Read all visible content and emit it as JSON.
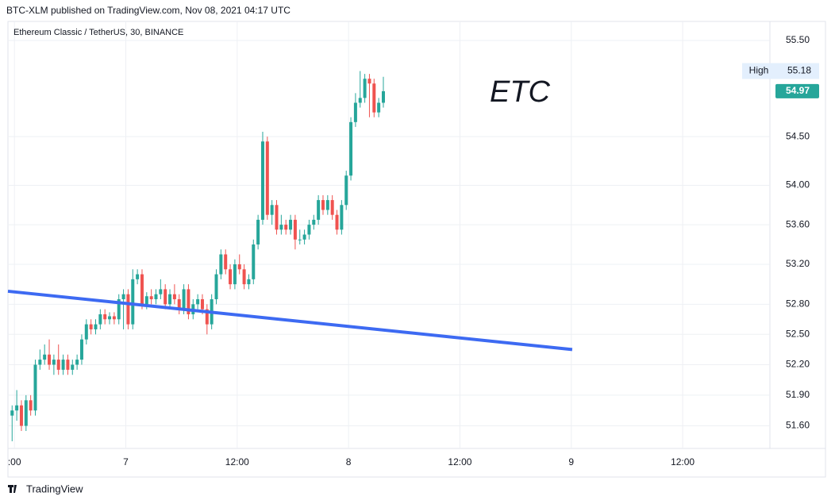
{
  "header": "BTC-XLM published on TradingView.com, Nov 08, 2021 04:17 UTC",
  "footer": "TradingView",
  "chart_data": {
    "type": "candlestick",
    "title": "Ethereum Classic / TetherUS, 30, BINANCE",
    "annotation": "ETC",
    "up_color": "#26a69a",
    "down_color": "#ef5350",
    "x": [
      11.75,
      12.25,
      12.75,
      13.25,
      13.75,
      14.25,
      14.75,
      15.25,
      15.75,
      16.25,
      16.75,
      17.25,
      17.75,
      18.25,
      18.75,
      19.25,
      19.75,
      20.25,
      20.75,
      21.25,
      21.75,
      22.25,
      22.75,
      23.25,
      23.75,
      24.25,
      24.75,
      25.25,
      25.75,
      26.25,
      26.75,
      27.25,
      27.75,
      28.25,
      28.75,
      29.25,
      29.75,
      30.25,
      30.75,
      31.25,
      31.75,
      32.25,
      32.75,
      33.25,
      33.75,
      34.25,
      34.75,
      35.25,
      35.75,
      36.25,
      36.75,
      37.25,
      37.75,
      38.25,
      38.75,
      39.25,
      39.75,
      40.25,
      40.75,
      41.25,
      41.75,
      42.25,
      42.75,
      43.25,
      43.75,
      44.25,
      44.75,
      45.25,
      45.75,
      46.25,
      46.75,
      47.25,
      47.75,
      48.25,
      48.75,
      49.25,
      49.75,
      50.25,
      50.75,
      51.25,
      51.75
    ],
    "open": [
      51.7,
      51.75,
      51.8,
      51.6,
      51.85,
      51.75,
      52.2,
      52.25,
      52.3,
      52.2,
      52.25,
      52.15,
      52.25,
      52.15,
      52.2,
      52.25,
      52.45,
      52.6,
      52.55,
      52.6,
      52.7,
      52.65,
      52.68,
      52.65,
      52.85,
      52.9,
      52.6,
      53.05,
      53.1,
      52.8,
      52.88,
      52.85,
      52.9,
      52.95,
      52.8,
      52.9,
      52.85,
      52.75,
      52.95,
      52.7,
      52.8,
      52.85,
      52.75,
      52.6,
      52.85,
      53.1,
      53.3,
      53.15,
      53.0,
      53.2,
      53.15,
      53.0,
      53.05,
      53.4,
      53.65,
      54.45,
      53.7,
      53.8,
      53.55,
      53.6,
      53.55,
      53.65,
      53.45,
      53.45,
      53.5,
      53.6,
      53.65,
      53.85,
      53.75,
      53.85,
      53.7,
      53.55,
      53.8,
      54.1,
      54.65,
      54.85,
      54.9,
      55.1,
      55.05,
      54.75,
      54.85
    ],
    "high": [
      51.8,
      51.95,
      51.85,
      51.9,
      51.9,
      52.25,
      52.35,
      52.4,
      52.45,
      52.3,
      52.4,
      52.3,
      52.3,
      52.25,
      52.3,
      52.5,
      52.65,
      52.65,
      52.65,
      52.75,
      52.75,
      52.72,
      52.72,
      52.9,
      52.95,
      52.95,
      53.15,
      53.15,
      53.15,
      52.92,
      52.95,
      52.95,
      53.05,
      53.0,
      52.95,
      53.0,
      52.9,
      53.0,
      53.0,
      52.85,
      52.9,
      52.9,
      52.8,
      52.9,
      53.15,
      53.35,
      53.35,
      53.2,
      53.25,
      53.3,
      53.2,
      53.1,
      53.45,
      53.7,
      54.55,
      54.5,
      53.85,
      53.85,
      53.7,
      53.65,
      53.7,
      53.7,
      53.55,
      53.55,
      53.65,
      53.7,
      53.9,
      53.9,
      53.9,
      53.9,
      53.75,
      53.85,
      54.15,
      54.7,
      54.95,
      55.18,
      55.15,
      55.15,
      55.1,
      54.9,
      55.12
    ],
    "low": [
      51.45,
      51.65,
      51.55,
      51.55,
      51.7,
      51.7,
      52.15,
      52.2,
      52.15,
      52.1,
      52.1,
      52.1,
      52.1,
      52.1,
      52.15,
      52.2,
      52.4,
      52.5,
      52.5,
      52.55,
      52.6,
      52.6,
      52.6,
      52.6,
      52.55,
      52.55,
      52.55,
      53.0,
      52.75,
      52.75,
      52.8,
      52.8,
      52.85,
      52.75,
      52.75,
      52.8,
      52.7,
      52.7,
      52.65,
      52.65,
      52.75,
      52.7,
      52.5,
      52.55,
      52.8,
      53.05,
      53.1,
      52.95,
      52.95,
      53.1,
      52.95,
      52.95,
      53.0,
      53.35,
      53.6,
      53.65,
      53.6,
      53.5,
      53.5,
      53.5,
      53.5,
      53.35,
      53.4,
      53.4,
      53.45,
      53.55,
      53.6,
      53.7,
      53.7,
      53.65,
      53.5,
      53.5,
      53.75,
      54.05,
      54.6,
      54.8,
      54.85,
      54.7,
      54.7,
      54.7,
      54.8
    ],
    "close": [
      51.75,
      51.8,
      51.6,
      51.85,
      51.75,
      52.2,
      52.25,
      52.3,
      52.2,
      52.25,
      52.15,
      52.25,
      52.15,
      52.2,
      52.25,
      52.45,
      52.6,
      52.55,
      52.6,
      52.7,
      52.65,
      52.68,
      52.65,
      52.85,
      52.9,
      52.6,
      53.05,
      53.1,
      52.8,
      52.88,
      52.85,
      52.9,
      52.95,
      52.8,
      52.9,
      52.85,
      52.75,
      52.95,
      52.7,
      52.8,
      52.85,
      52.75,
      52.6,
      52.85,
      53.1,
      53.3,
      53.15,
      53.0,
      53.2,
      53.15,
      53.0,
      53.05,
      53.4,
      53.65,
      54.45,
      53.7,
      53.8,
      53.55,
      53.6,
      53.55,
      53.65,
      53.45,
      53.45,
      53.5,
      53.6,
      53.65,
      53.85,
      53.75,
      53.85,
      53.7,
      53.55,
      53.8,
      54.1,
      54.65,
      54.85,
      54.9,
      55.1,
      55.05,
      54.75,
      54.85,
      54.97
    ],
    "xlim": [
      11.3,
      93.4
    ],
    "xticks": [
      {
        "value": 12,
        "label": ":00"
      },
      {
        "value": 24,
        "label": "7"
      },
      {
        "value": 36,
        "label": "12:00"
      },
      {
        "value": 48,
        "label": "8"
      },
      {
        "value": 60,
        "label": "12:00"
      },
      {
        "value": 72,
        "label": "9"
      },
      {
        "value": 84,
        "label": "12:00"
      }
    ],
    "ylim": [
      51.38,
      55.7
    ],
    "log_scale": true,
    "grid": true,
    "yticks": [
      {
        "value": 55.5,
        "label": "55.50"
      },
      {
        "value": 54.5,
        "label": "54.50"
      },
      {
        "value": 54,
        "label": "54.00"
      },
      {
        "value": 53.6,
        "label": "53.60"
      },
      {
        "value": 53.2,
        "label": "53.20"
      },
      {
        "value": 52.8,
        "label": "52.80"
      },
      {
        "value": 52.5,
        "label": "52.50"
      },
      {
        "value": 52.2,
        "label": "52.20"
      },
      {
        "value": 51.9,
        "label": "51.90"
      },
      {
        "value": 51.6,
        "label": "51.60"
      }
    ],
    "high_label": {
      "label": "High",
      "value": 55.18
    },
    "last_price": 54.97,
    "trendline": {
      "x": [
        11.3,
        72.1
      ],
      "y": [
        52.93,
        52.35
      ],
      "color": "#3d6af2"
    }
  }
}
